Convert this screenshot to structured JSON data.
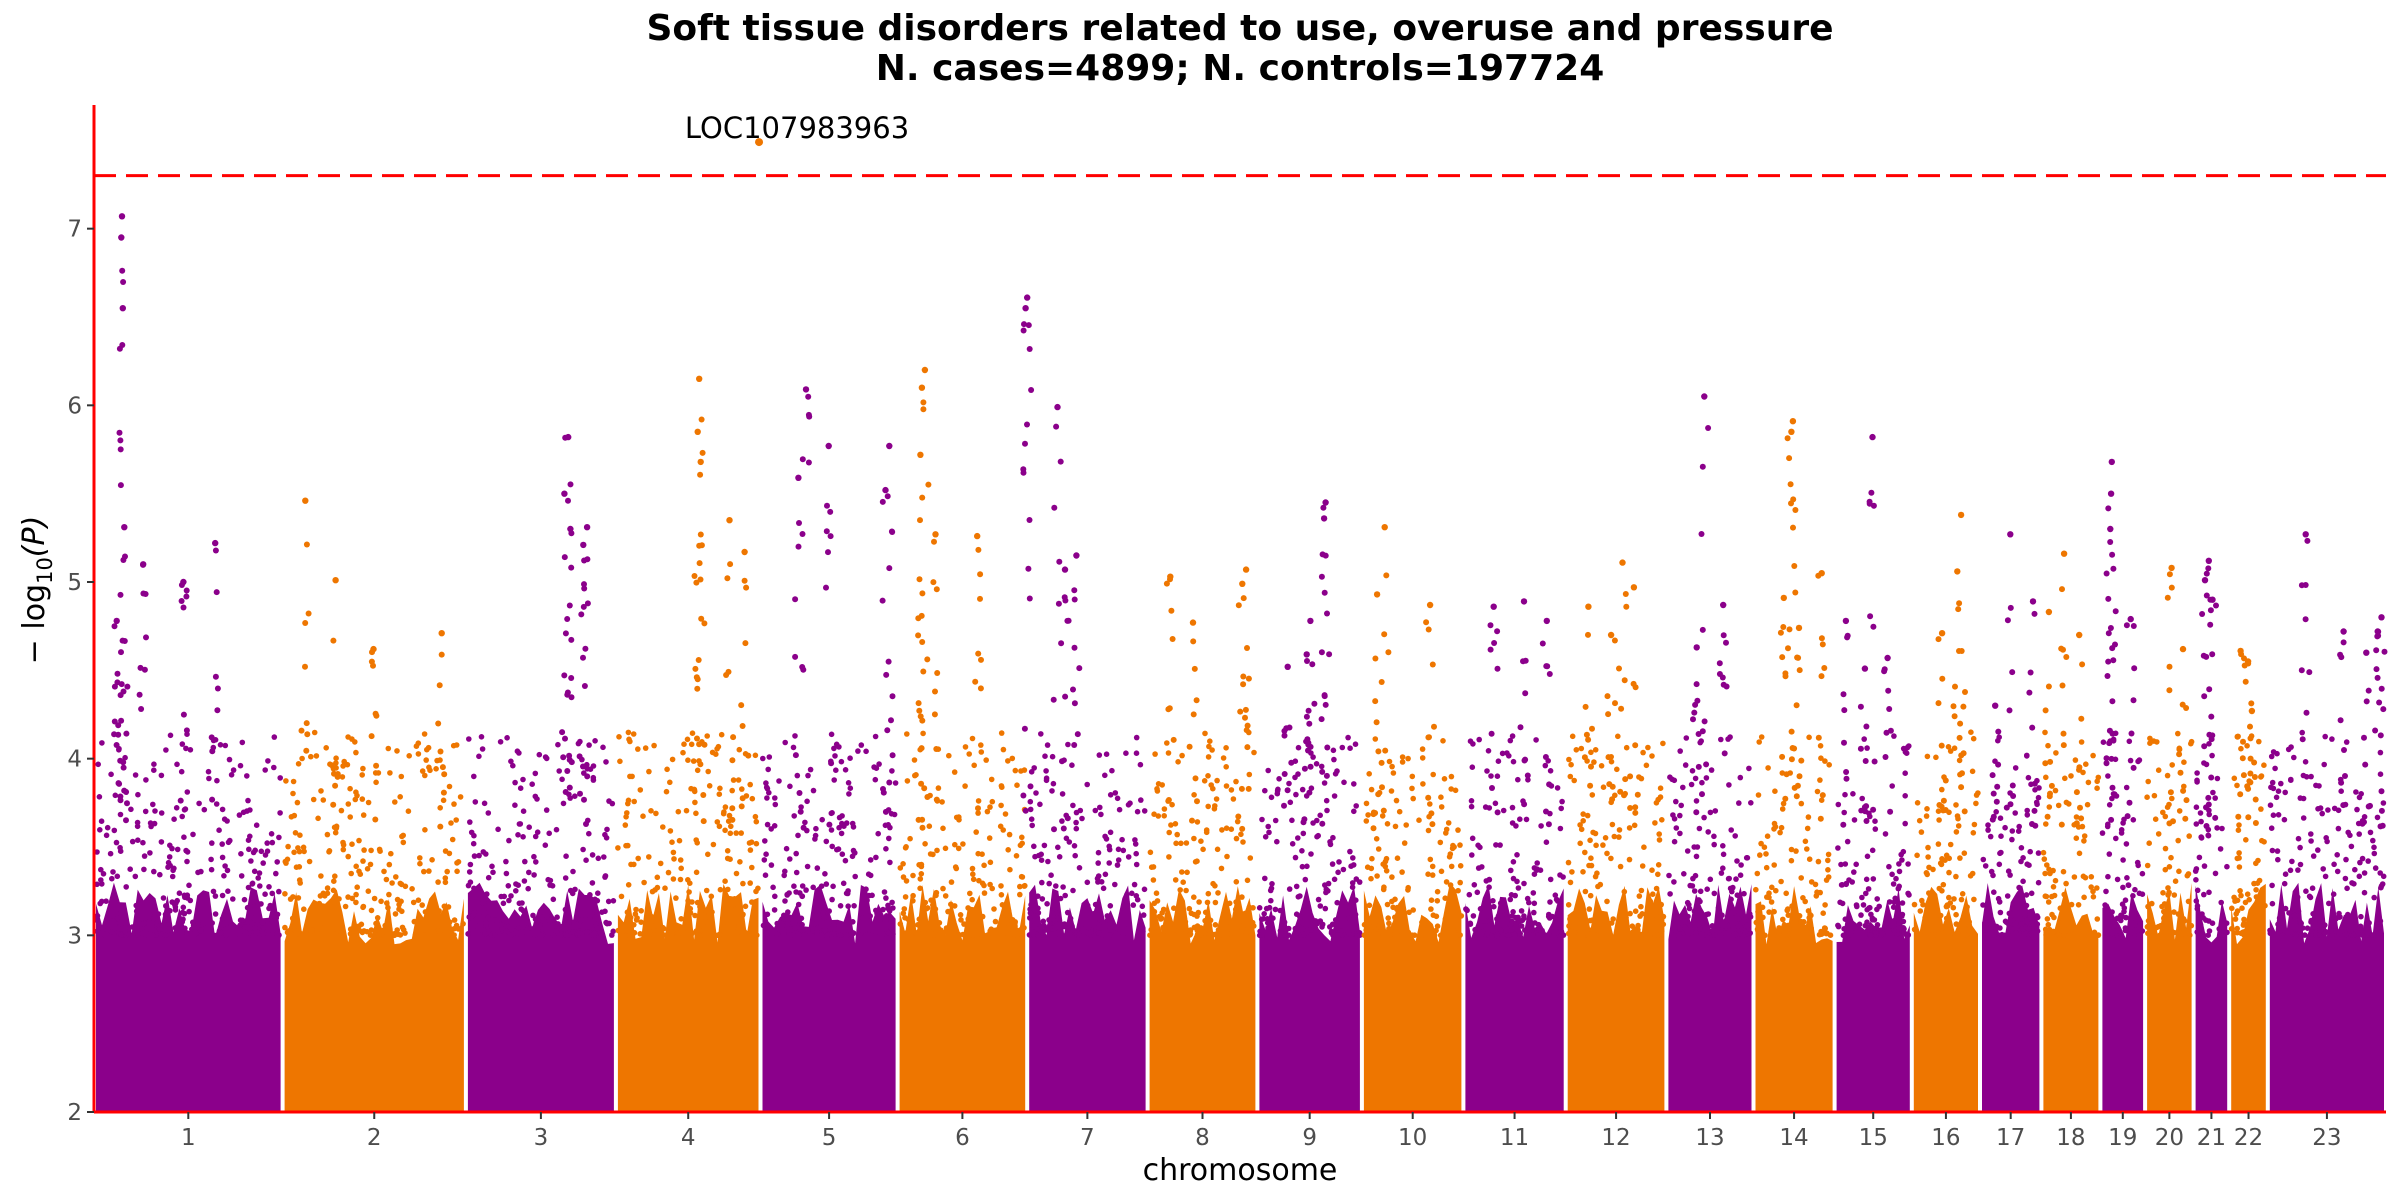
{
  "chart_data": {
    "type": "scatter",
    "subtype": "manhattan",
    "title": "Soft tissue disorders related to use, overuse and pressure",
    "subtitle": "N. cases=4899; N. controls=197724",
    "xlabel": "chromosome",
    "ylabel_prefix": "− log",
    "ylabel_sub": "10",
    "ylabel_suffix": "(P)",
    "ylim": [
      2,
      7.7
    ],
    "yticks": [
      "2",
      "3",
      "4",
      "5",
      "6",
      "7"
    ],
    "significance_line": 7.3,
    "grid": false,
    "colors": {
      "odd": "#8b008b",
      "even": "#ee7600",
      "axis": "#ff0000",
      "threshold": "#ff0000"
    },
    "chromosomes": [
      {
        "label": "1",
        "start": 0,
        "end": 249,
        "top": [
          [
            37,
            7.07
          ],
          [
            36,
            6.95
          ],
          [
            38,
            6.55
          ],
          [
            40,
            5.31
          ],
          [
            65,
            5.1
          ],
          [
            30,
            4.78
          ],
          [
            118,
            5.0
          ],
          [
            160,
            5.22
          ]
        ]
      },
      {
        "label": "2",
        "start": 249,
        "end": 491,
        "top": [
          [
            30,
            5.46
          ],
          [
            70,
            5.01
          ],
          [
            120,
            4.62
          ],
          [
            210,
            4.71
          ]
        ]
      },
      {
        "label": "3",
        "start": 491,
        "end": 689,
        "top": [
          [
            135,
            5.82
          ],
          [
            130,
            5.5
          ],
          [
            138,
            5.3
          ],
          [
            160,
            5.31
          ],
          [
            155,
            5.21
          ]
        ]
      },
      {
        "label": "4",
        "start": 689,
        "end": 880,
        "top": [
          [
            110,
            6.15
          ],
          [
            108,
            5.85
          ],
          [
            112,
            5.68
          ],
          [
            150,
            5.35
          ],
          [
            170,
            5.17
          ]
        ]
      },
      {
        "label": "5",
        "start": 880,
        "end": 1061,
        "top": [
          [
            60,
            6.09
          ],
          [
            90,
            5.77
          ],
          [
            50,
            5.59
          ],
          [
            170,
            5.77
          ],
          [
            165,
            5.52
          ]
        ]
      },
      {
        "label": "6",
        "start": 1061,
        "end": 1232,
        "top": [
          [
            36,
            6.2
          ],
          [
            32,
            6.1
          ],
          [
            30,
            5.72
          ],
          [
            50,
            5.27
          ],
          [
            105,
            5.26
          ]
        ]
      },
      {
        "label": "7",
        "start": 1232,
        "end": 1391,
        "top": [
          [
            0,
            6.61
          ],
          [
            -2,
            6.55
          ],
          [
            40,
            5.99
          ],
          [
            65,
            5.15
          ],
          [
            50,
            5.07
          ]
        ]
      },
      {
        "label": "8",
        "start": 1391,
        "end": 1536,
        "top": [
          [
            30,
            5.03
          ],
          [
            130,
            5.07
          ],
          [
            125,
            4.99
          ],
          [
            60,
            4.77
          ]
        ]
      },
      {
        "label": "9",
        "start": 1536,
        "end": 1674,
        "top": [
          [
            40,
            4.52
          ],
          [
            90,
            5.45
          ],
          [
            88,
            5.36
          ],
          [
            70,
            4.78
          ],
          [
            65,
            4.59
          ]
        ]
      },
      {
        "label": "10",
        "start": 1674,
        "end": 1808,
        "top": [
          [
            30,
            5.31
          ],
          [
            20,
            4.93
          ],
          [
            90,
            4.87
          ]
        ]
      },
      {
        "label": "11",
        "start": 1808,
        "end": 1943,
        "top": [
          [
            40,
            4.86
          ],
          [
            80,
            4.89
          ],
          [
            110,
            4.78
          ]
        ]
      },
      {
        "label": "12",
        "start": 1943,
        "end": 2076,
        "top": [
          [
            75,
            5.11
          ],
          [
            90,
            4.97
          ],
          [
            30,
            4.86
          ],
          [
            60,
            4.7
          ]
        ]
      },
      {
        "label": "13",
        "start": 2076,
        "end": 2191,
        "top": [
          [
            50,
            6.05
          ],
          [
            75,
            4.87
          ],
          [
            40,
            4.63
          ]
        ]
      },
      {
        "label": "14",
        "start": 2191,
        "end": 2298,
        "top": [
          [
            52,
            5.91
          ],
          [
            50,
            5.85
          ],
          [
            90,
            5.05
          ],
          [
            40,
            4.91
          ],
          [
            60,
            4.74
          ]
        ]
      },
      {
        "label": "15",
        "start": 2298,
        "end": 2400,
        "top": [
          [
            15,
            4.78
          ],
          [
            50,
            5.82
          ],
          [
            70,
            4.57
          ],
          [
            40,
            4.51
          ]
        ]
      },
      {
        "label": "16",
        "start": 2400,
        "end": 2490,
        "top": [
          [
            65,
            5.38
          ],
          [
            60,
            5.06
          ],
          [
            40,
            4.71
          ]
        ]
      },
      {
        "label": "17",
        "start": 2490,
        "end": 2571,
        "top": [
          [
            40,
            5.27
          ],
          [
            70,
            4.89
          ],
          [
            20,
            4.3
          ]
        ]
      },
      {
        "label": "18",
        "start": 2571,
        "end": 2649,
        "top": [
          [
            30,
            5.16
          ],
          [
            10,
            4.83
          ],
          [
            50,
            4.7
          ]
        ]
      },
      {
        "label": "19",
        "start": 2649,
        "end": 2708,
        "top": [
          [
            15,
            5.68
          ],
          [
            14,
            5.5
          ],
          [
            13,
            5.3
          ],
          [
            40,
            4.79
          ]
        ]
      },
      {
        "label": "20",
        "start": 2708,
        "end": 2772,
        "top": [
          [
            35,
            5.08
          ],
          [
            50,
            4.62
          ]
        ]
      },
      {
        "label": "21",
        "start": 2772,
        "end": 2819,
        "top": [
          [
            20,
            5.12
          ],
          [
            15,
            5.01
          ],
          [
            25,
            4.9
          ]
        ]
      },
      {
        "label": "22",
        "start": 2819,
        "end": 2870,
        "top": [
          [
            15,
            4.61
          ],
          [
            25,
            4.55
          ],
          [
            30,
            4.27
          ]
        ]
      },
      {
        "label": "23",
        "start": 2870,
        "end": 3026,
        "top": [
          [
            50,
            5.27
          ],
          [
            100,
            4.72
          ],
          [
            150,
            4.8
          ],
          [
            145,
            4.72
          ],
          [
            130,
            4.6
          ]
        ]
      }
    ],
    "annotations": [
      {
        "text": "LOC107983963",
        "chromosome": "4",
        "pos": 189,
        "y": 7.49
      }
    ]
  }
}
